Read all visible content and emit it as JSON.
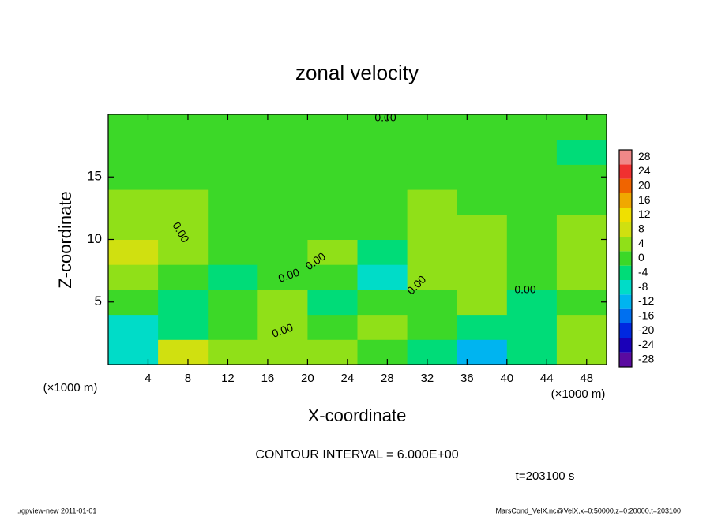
{
  "chart_data": {
    "type": "contour",
    "title": "zonal velocity",
    "xlabel": "X-coordinate",
    "ylabel": "Z-coordinate",
    "xunit": "(×1000 m)",
    "yunit": "(×1000 m)",
    "x": [
      2.5,
      7.5,
      12.5,
      17.5,
      22.5,
      27.5,
      32.5,
      37.5,
      42.5,
      47.5
    ],
    "y": [
      1,
      3,
      5,
      7,
      9,
      11,
      13,
      15,
      17,
      19
    ],
    "values": [
      [
        -8,
        8,
        4,
        3,
        3,
        0,
        -4,
        -12,
        -4,
        3
      ],
      [
        -6,
        -2,
        0,
        3,
        0,
        3,
        0,
        -4,
        -4,
        3
      ],
      [
        0,
        -2,
        0,
        4,
        -2,
        0,
        0,
        3,
        -4,
        0
      ],
      [
        4,
        0,
        -2,
        0,
        0,
        -6,
        3,
        3,
        0,
        3
      ],
      [
        8,
        3,
        0,
        0,
        3,
        -4,
        3,
        3,
        0,
        6
      ],
      [
        6,
        3,
        0,
        0,
        0,
        0,
        3,
        3,
        0,
        3
      ],
      [
        3,
        3,
        0,
        0,
        0,
        0,
        3,
        0,
        0,
        0
      ],
      [
        0,
        0,
        0,
        0,
        0,
        0,
        0,
        0,
        0,
        0
      ],
      [
        0,
        0,
        0,
        0,
        0,
        0,
        0,
        0,
        0,
        -2
      ],
      [
        0,
        0,
        0,
        0,
        0,
        0,
        0,
        0,
        0,
        0
      ]
    ],
    "xlim": [
      0,
      50
    ],
    "ylim": [
      0,
      20
    ],
    "xticks": [
      4,
      8,
      12,
      16,
      20,
      24,
      28,
      32,
      36,
      40,
      44,
      48
    ],
    "yticks": [
      5,
      10,
      15
    ],
    "levels": [
      -28,
      -24,
      -20,
      -16,
      -12,
      -8,
      -4,
      0,
      4,
      8,
      12,
      16,
      20,
      24,
      28
    ],
    "colors": [
      "#5a0aa0",
      "#1a00b8",
      "#0028e0",
      "#0070f0",
      "#00b4f0",
      "#00dcc8",
      "#00dc78",
      "#3cd828",
      "#90e018",
      "#d0e010",
      "#f0e000",
      "#f0a800",
      "#f06400",
      "#f03030",
      "#f08888"
    ],
    "contour_labels": [
      "0.00",
      "0.00",
      "0.00",
      "0.00",
      "0.00",
      "0.00",
      "0.00"
    ],
    "contour_interval": "CONTOUR INTERVAL = 6.000E+00",
    "time": "t=203100 s",
    "footer_left": "./gpview-new   2011-01-01",
    "footer_right": "MarsCond_VelX.nc@VelX,x=0:50000,z=0:20000,t=203100"
  }
}
